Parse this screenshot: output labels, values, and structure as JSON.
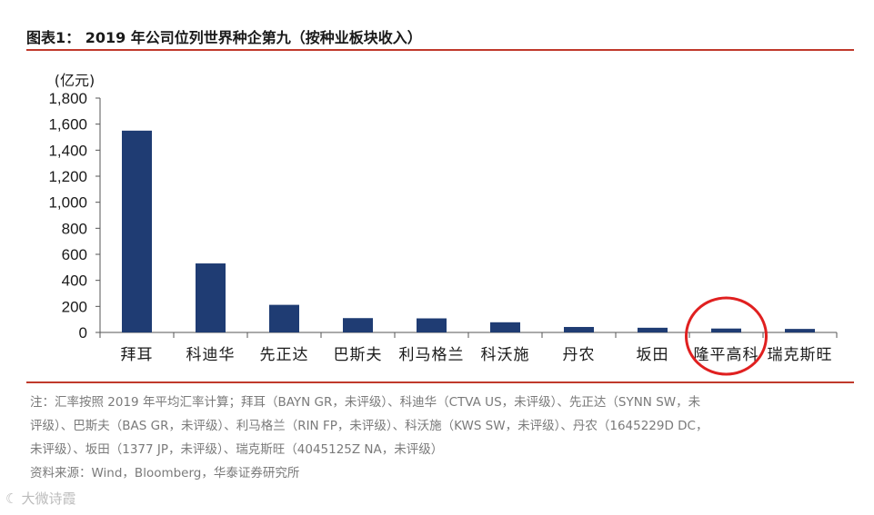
{
  "title": "图表1：  2019 年公司位列世界种企第九（按种业板块收入）",
  "chart_data": {
    "type": "bar",
    "title": "图表1：  2019 年公司位列世界种企第九（按种业板块收入）",
    "unit_label": "(亿元)",
    "xlabel": "",
    "ylabel": "(亿元)",
    "ylim": [
      0,
      1800
    ],
    "yticks": [
      0,
      200,
      400,
      600,
      800,
      1000,
      1200,
      1400,
      1600,
      1800
    ],
    "ytick_labels": [
      "0",
      "200",
      "400",
      "600",
      "800",
      "1,000",
      "1,200",
      "1,400",
      "1,600",
      "1,800"
    ],
    "categories": [
      "拜耳",
      "科迪华",
      "先正达",
      "巴斯夫",
      "利马格兰",
      "科沃施",
      "丹农",
      "坂田",
      "隆平高科",
      "瑞克斯旺"
    ],
    "values": [
      1550,
      530,
      212,
      110,
      108,
      78,
      42,
      36,
      30,
      27
    ],
    "highlight": "隆平高科",
    "grid": false,
    "legend": "none",
    "bar_color": "#1f3c73",
    "highlight_color": "#e02020"
  },
  "notes": {
    "line1": "注：汇率按照 2019 年平均汇率计算；拜耳（BAYN GR，未评级）、科迪华（CTVA US，未评级）、先正达（SYNN SW，未",
    "line2": "评级）、巴斯夫（BAS GR，未评级）、利马格兰（RIN FP，未评级）、科沃施（KWS SW，未评级）、丹农（1645229D DC，",
    "line3": "未评级）、坂田（1377 JP，未评级）、瑞克斯旺（4045125Z NA，未评级）",
    "source": "资料来源：Wind，Bloomberg，华泰证券研究所"
  },
  "watermark": {
    "icon": "watermark-logo-icon",
    "text": "大微诗霞"
  },
  "colors": {
    "rule": "#c0392b",
    "text": "#1a1a1a",
    "note": "#7a7a7a"
  }
}
